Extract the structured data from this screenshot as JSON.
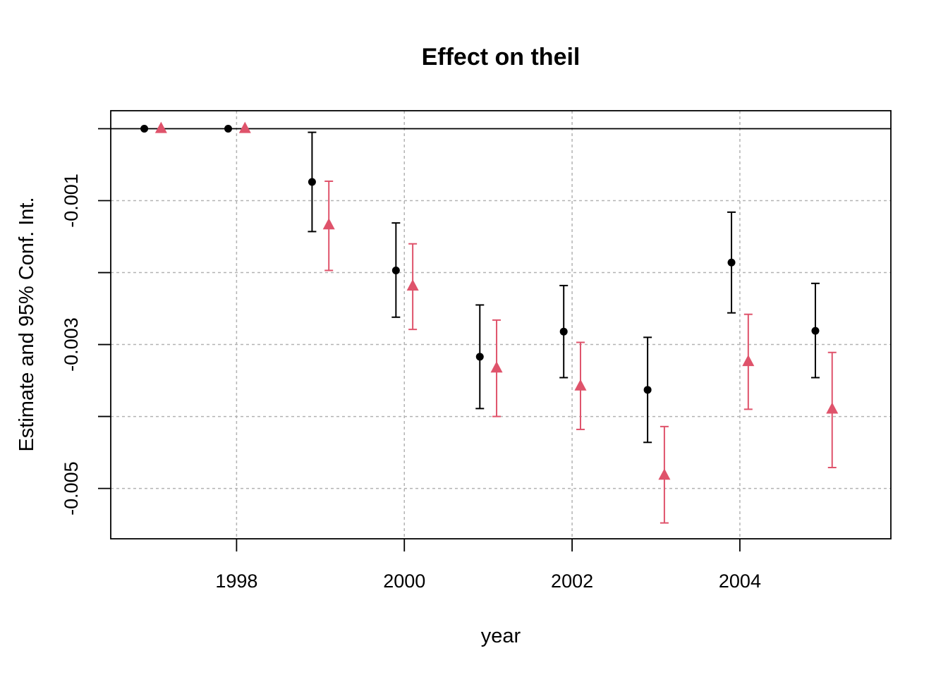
{
  "chart_data": {
    "type": "scatter",
    "title": "Effect on theil",
    "xlabel": "year",
    "ylabel": "Estimate and 95% Conf. Int.",
    "x_ticks": [
      1998,
      2000,
      2002,
      2004
    ],
    "x_tick_labels": [
      "1998",
      "2000",
      "2002",
      "2004"
    ],
    "y_ticks": [
      -0.001,
      -0.002,
      -0.003,
      -0.004,
      -0.005
    ],
    "y_tick_labels": [
      "-0.001",
      "",
      "-0.003",
      "",
      "-0.005"
    ],
    "xlim": [
      1996.5,
      2005.8
    ],
    "ylim": [
      -0.0057,
      0.00025
    ],
    "grid": true,
    "reference_line": 0,
    "series": [
      {
        "color": "#000000",
        "marker": "circle",
        "points": [
          {
            "x": 1996.9,
            "y": 0,
            "lo": 0,
            "hi": 0
          },
          {
            "x": 1997.9,
            "y": 0,
            "lo": 0,
            "hi": 0
          },
          {
            "x": 1998.9,
            "y": -0.00074,
            "lo": -0.00143,
            "hi": -5e-05
          },
          {
            "x": 1999.9,
            "y": -0.00197,
            "lo": -0.00262,
            "hi": -0.00131
          },
          {
            "x": 2000.9,
            "y": -0.00317,
            "lo": -0.00389,
            "hi": -0.00245
          },
          {
            "x": 2001.9,
            "y": -0.00282,
            "lo": -0.00346,
            "hi": -0.00218
          },
          {
            "x": 2002.9,
            "y": -0.00363,
            "lo": -0.00436,
            "hi": -0.0029
          },
          {
            "x": 2003.9,
            "y": -0.00186,
            "lo": -0.00256,
            "hi": -0.00116
          },
          {
            "x": 2004.9,
            "y": -0.00281,
            "lo": -0.00346,
            "hi": -0.00215
          }
        ]
      },
      {
        "color": "#DF536B",
        "marker": "triangle",
        "points": [
          {
            "x": 1997.1,
            "y": 0,
            "lo": 0,
            "hi": 0
          },
          {
            "x": 1998.1,
            "y": 0,
            "lo": 0,
            "hi": 0
          },
          {
            "x": 1999.1,
            "y": -0.00134,
            "lo": -0.00197,
            "hi": -0.00073
          },
          {
            "x": 2000.1,
            "y": -0.00219,
            "lo": -0.00279,
            "hi": -0.0016
          },
          {
            "x": 2001.1,
            "y": -0.00333,
            "lo": -0.004,
            "hi": -0.00266
          },
          {
            "x": 2002.1,
            "y": -0.00358,
            "lo": -0.00418,
            "hi": -0.00297
          },
          {
            "x": 2003.1,
            "y": -0.00482,
            "lo": -0.00548,
            "hi": -0.00414
          },
          {
            "x": 2004.1,
            "y": -0.00324,
            "lo": -0.0039,
            "hi": -0.00258
          },
          {
            "x": 2005.1,
            "y": -0.0039,
            "lo": -0.00471,
            "hi": -0.00311
          }
        ]
      }
    ]
  }
}
